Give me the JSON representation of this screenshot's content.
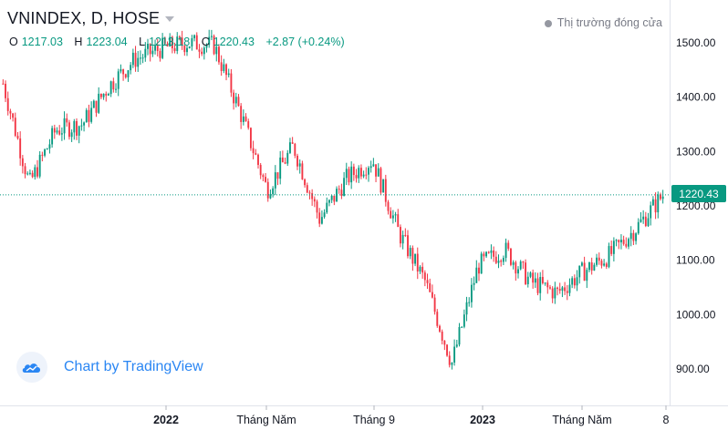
{
  "header": {
    "symbol_title": "VNINDEX, D, HOSE",
    "ohlc": [
      {
        "key": "O",
        "value": "1217.03"
      },
      {
        "key": "H",
        "value": "1223.04"
      },
      {
        "key": "L",
        "value": "1213.18"
      },
      {
        "key": "C",
        "value": "1220.43"
      }
    ],
    "change": "+2.87 (+0.24%)",
    "market_status": "Thị trường đóng cửa"
  },
  "watermark": {
    "text": "Chart by TradingView",
    "icon": "tradingview-cloud-icon"
  },
  "colors": {
    "up": "#089981",
    "down": "#f23645",
    "axis_text": "#131722",
    "accent": "#2a86f3"
  },
  "chart_data": {
    "type": "candlestick",
    "title": "VNINDEX, D, HOSE",
    "last_price_label": "1220.43",
    "ylim": [
      860,
      1540
    ],
    "y_ticks": [
      900,
      1000,
      1100,
      1200,
      1300,
      1400,
      1500
    ],
    "y_tick_labels": [
      "900.00",
      "1000.00",
      "1100.00",
      "1200.00",
      "1300.00",
      "1400.00",
      "1500.00"
    ],
    "x_ticks": [
      "2022",
      "Tháng Năm",
      "Tháng 9",
      "2023",
      "Tháng Năm",
      "8"
    ],
    "x": [
      "2021-07",
      "2021-08",
      "2021-09",
      "2021-10",
      "2021-11",
      "2021-12",
      "2022-01",
      "2022-02",
      "2022-03",
      "2022-04",
      "2022-05",
      "2022-06",
      "2022-07",
      "2022-08",
      "2022-09",
      "2022-10",
      "2022-11",
      "2022-12",
      "2023-01",
      "2023-02",
      "2023-03",
      "2023-04",
      "2023-05",
      "2023-06",
      "2023-07",
      "2023-08"
    ],
    "close": [
      1425,
      1240,
      1340,
      1350,
      1420,
      1470,
      1490,
      1500,
      1495,
      1370,
      1230,
      1310,
      1175,
      1250,
      1285,
      1150,
      1060,
      910,
      1090,
      1120,
      1060,
      1040,
      1080,
      1110,
      1160,
      1220
    ],
    "grid": false,
    "legend": "none"
  }
}
